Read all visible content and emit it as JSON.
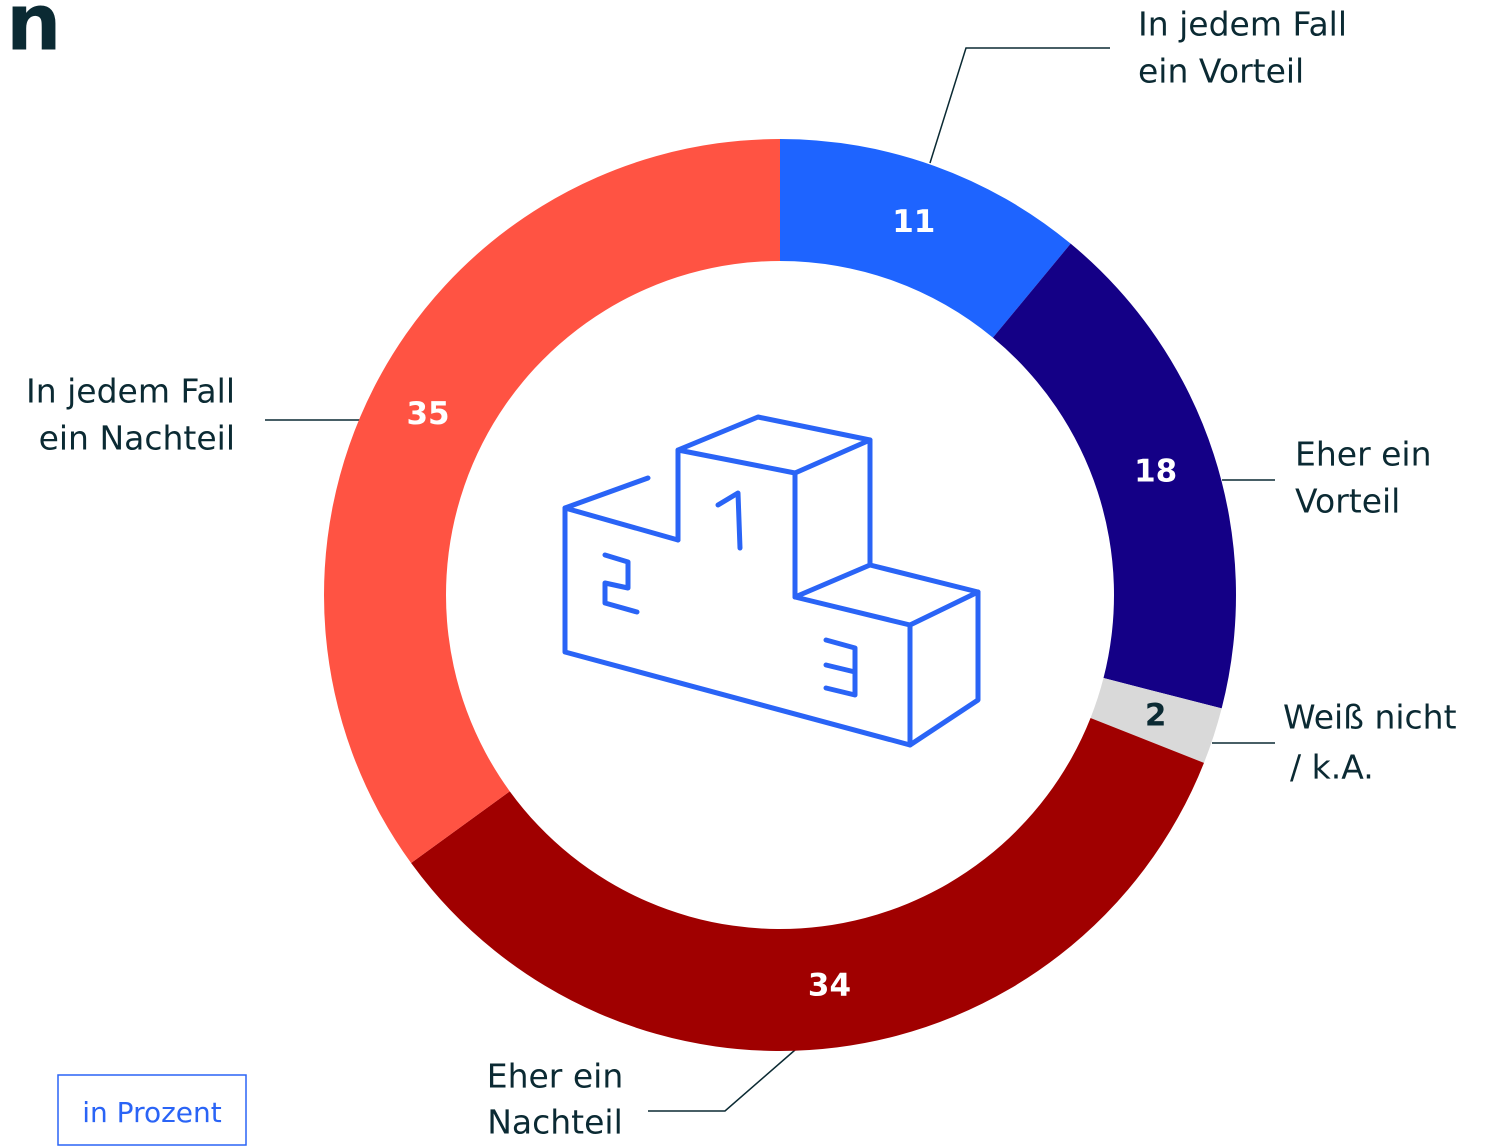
{
  "chart_data": {
    "type": "donut",
    "title": "n",
    "categories": [
      [
        "In jedem Fall",
        "ein Vorteil"
      ],
      [
        "Eher ein",
        "Vorteil"
      ],
      [
        "Weiß nicht",
        "/ k.A."
      ],
      [
        "Eher ein",
        "Nachteil"
      ],
      [
        "In jedem Fall",
        "ein Nachteil"
      ]
    ],
    "values": [
      11,
      18,
      2,
      34,
      35
    ],
    "colors": [
      "#1e64ff",
      "#140086",
      "#d9d9d9",
      "#a00000",
      "#ff5343"
    ],
    "note": "in Prozent"
  }
}
